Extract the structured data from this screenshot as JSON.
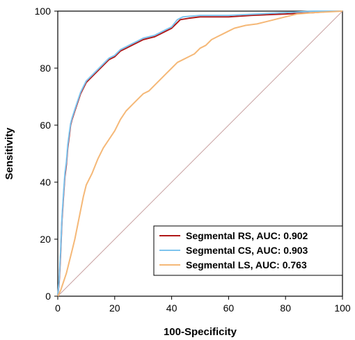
{
  "chart_data": {
    "type": "line",
    "title": "",
    "xlabel": "100-Specificity",
    "ylabel": "Sensitivity",
    "xlim": [
      0,
      100
    ],
    "ylim": [
      0,
      100
    ],
    "xticks": [
      "0",
      "20",
      "40",
      "60",
      "80",
      "100"
    ],
    "yticks": [
      "0",
      "20",
      "40",
      "60",
      "80",
      "100"
    ],
    "grid": false,
    "legend_position": "bottom-right",
    "reference_line": {
      "from": [
        0,
        0
      ],
      "to": [
        100,
        100
      ],
      "color": "#c8a0a0"
    },
    "series": [
      {
        "name": "Segmental RS",
        "label": "Segmental RS, AUC: 0.902",
        "auc": 0.902,
        "color": "#b01818",
        "points": [
          [
            0,
            0
          ],
          [
            0.5,
            5
          ],
          [
            1,
            15
          ],
          [
            1.5,
            27
          ],
          [
            2,
            35
          ],
          [
            2.5,
            42
          ],
          [
            3,
            46
          ],
          [
            3.5,
            52
          ],
          [
            4,
            56
          ],
          [
            4.5,
            60
          ],
          [
            5,
            62
          ],
          [
            6,
            65
          ],
          [
            7,
            68
          ],
          [
            8,
            71
          ],
          [
            9,
            73
          ],
          [
            10,
            75
          ],
          [
            12,
            77
          ],
          [
            14,
            79
          ],
          [
            16,
            81
          ],
          [
            18,
            83
          ],
          [
            20,
            84
          ],
          [
            22,
            86
          ],
          [
            24,
            87
          ],
          [
            26,
            88
          ],
          [
            28,
            89
          ],
          [
            30,
            90
          ],
          [
            32,
            90.5
          ],
          [
            34,
            91
          ],
          [
            36,
            92
          ],
          [
            38,
            93
          ],
          [
            40,
            94
          ],
          [
            42,
            96
          ],
          [
            43,
            97
          ],
          [
            46,
            97.5
          ],
          [
            50,
            98
          ],
          [
            60,
            98
          ],
          [
            68,
            98.5
          ],
          [
            80,
            99
          ],
          [
            90,
            99.5
          ],
          [
            97,
            100
          ],
          [
            100,
            100
          ]
        ]
      },
      {
        "name": "Segmental CS",
        "label": "Segmental CS, AUC: 0.903",
        "auc": 0.903,
        "color": "#7ec4ee",
        "points": [
          [
            0,
            0
          ],
          [
            0.5,
            6
          ],
          [
            1,
            16
          ],
          [
            1.5,
            28
          ],
          [
            2,
            36
          ],
          [
            2.5,
            43
          ],
          [
            3,
            47
          ],
          [
            3.5,
            53
          ],
          [
            4,
            57
          ],
          [
            4.5,
            60.5
          ],
          [
            5,
            62.5
          ],
          [
            6,
            65.5
          ],
          [
            7,
            68.5
          ],
          [
            8,
            71.5
          ],
          [
            9,
            73.5
          ],
          [
            10,
            75.5
          ],
          [
            12,
            77.5
          ],
          [
            14,
            79.5
          ],
          [
            16,
            81.5
          ],
          [
            18,
            83.5
          ],
          [
            20,
            84.5
          ],
          [
            22,
            86.5
          ],
          [
            24,
            87.5
          ],
          [
            26,
            88.5
          ],
          [
            28,
            89.5
          ],
          [
            30,
            90.5
          ],
          [
            32,
            91
          ],
          [
            34,
            91.5
          ],
          [
            36,
            92.5
          ],
          [
            38,
            93.5
          ],
          [
            40,
            94.5
          ],
          [
            42,
            97
          ],
          [
            44,
            98
          ],
          [
            50,
            98.5
          ],
          [
            60,
            98.5
          ],
          [
            70,
            99
          ],
          [
            80,
            99.5
          ],
          [
            90,
            100
          ],
          [
            100,
            100
          ]
        ]
      },
      {
        "name": "Segmental LS",
        "label": "Segmental LS, AUC: 0.763",
        "auc": 0.763,
        "color": "#f5b877",
        "points": [
          [
            0,
            0
          ],
          [
            1,
            2
          ],
          [
            2,
            5
          ],
          [
            3,
            8
          ],
          [
            4,
            12
          ],
          [
            5,
            16
          ],
          [
            6,
            20
          ],
          [
            7,
            25
          ],
          [
            8,
            30
          ],
          [
            9,
            35
          ],
          [
            10,
            39
          ],
          [
            12,
            43
          ],
          [
            14,
            48
          ],
          [
            16,
            52
          ],
          [
            18,
            55
          ],
          [
            20,
            58
          ],
          [
            22,
            62
          ],
          [
            24,
            65
          ],
          [
            26,
            67
          ],
          [
            28,
            69
          ],
          [
            30,
            71
          ],
          [
            32,
            72
          ],
          [
            34,
            74
          ],
          [
            36,
            76
          ],
          [
            38,
            78
          ],
          [
            40,
            80
          ],
          [
            42,
            82
          ],
          [
            44,
            83
          ],
          [
            46,
            84
          ],
          [
            48,
            85
          ],
          [
            50,
            87
          ],
          [
            52,
            88
          ],
          [
            54,
            90
          ],
          [
            56,
            91
          ],
          [
            58,
            92
          ],
          [
            60,
            93
          ],
          [
            62,
            94
          ],
          [
            66,
            95
          ],
          [
            70,
            95.5
          ],
          [
            76,
            97
          ],
          [
            80,
            98
          ],
          [
            84,
            99
          ],
          [
            90,
            99.5
          ],
          [
            100,
            100
          ]
        ]
      }
    ]
  }
}
